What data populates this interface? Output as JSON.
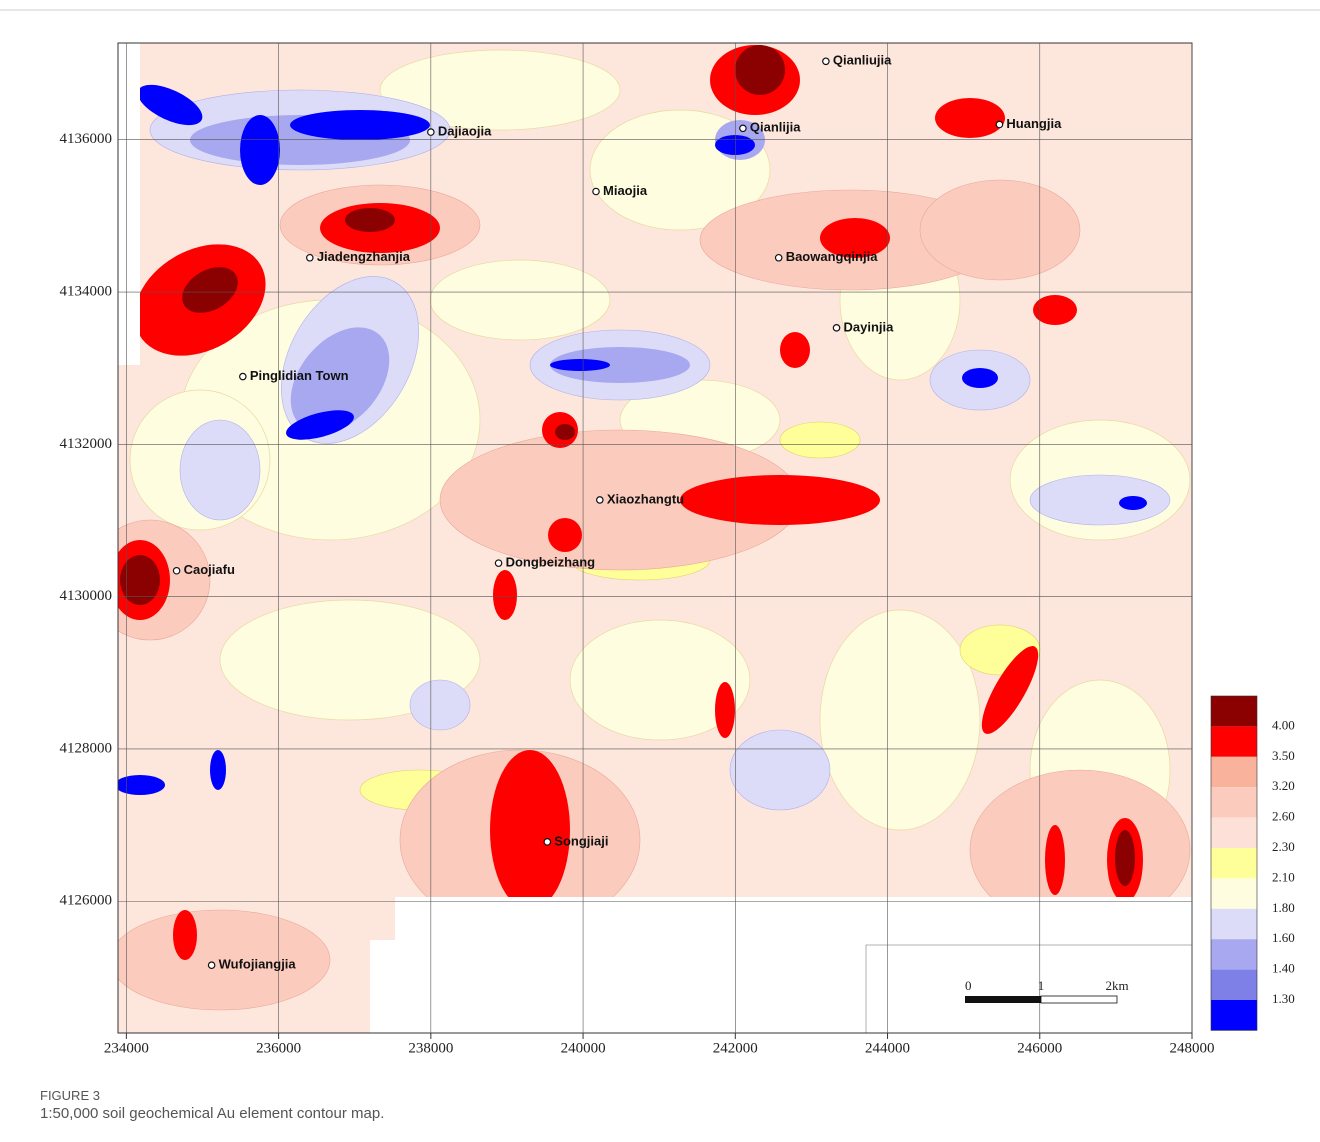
{
  "map": {
    "xlim": [
      233890,
      248000
    ],
    "ylim": [
      4124270,
      4137270
    ],
    "xticks": [
      234000,
      236000,
      238000,
      240000,
      242000,
      244000,
      246000,
      248000
    ],
    "yticks": [
      4126000,
      4128000,
      4130000,
      4132000,
      4134000,
      4136000
    ],
    "places": [
      {
        "name": "Qianliujia",
        "x": 243190,
        "y": 4137030
      },
      {
        "name": "Dajiaojia",
        "x": 238000,
        "y": 4136100
      },
      {
        "name": "Qianlijia",
        "x": 242100,
        "y": 4136150
      },
      {
        "name": "Huangjia",
        "x": 245470,
        "y": 4136200
      },
      {
        "name": "Miaojia",
        "x": 240170,
        "y": 4135320
      },
      {
        "name": "Jiadengzhanjia",
        "x": 236410,
        "y": 4134450
      },
      {
        "name": "Baowangqinjia",
        "x": 242570,
        "y": 4134450
      },
      {
        "name": "Dayinjia",
        "x": 243330,
        "y": 4133530
      },
      {
        "name": "Pinglidian Town",
        "x": 235530,
        "y": 4132890
      },
      {
        "name": "Xiaozhangtu",
        "x": 240220,
        "y": 4131270
      },
      {
        "name": "Caojiafu",
        "x": 234660,
        "y": 4130340
      },
      {
        "name": "Dongbeizhang",
        "x": 238890,
        "y": 4130440
      },
      {
        "name": "Songjiaji",
        "x": 239530,
        "y": 4126780
      },
      {
        "name": "Wufojiangjia",
        "x": 235120,
        "y": 4125160
      }
    ],
    "legend": {
      "colors": [
        "#8b0000",
        "#ff0000",
        "#f9b29c",
        "#fbcbbd",
        "#fde0d8",
        "#ffff99",
        "#fffde0",
        "#dcdcf8",
        "#a8a8f0",
        "#7f7fe8",
        "#0000ff"
      ],
      "levels": [
        {
          "value": 4,
          "label": "4.00"
        },
        {
          "value": 3.5,
          "label": "3.50"
        },
        {
          "value": 3.2,
          "label": "3.20"
        },
        {
          "value": 2.6,
          "label": "2.60"
        },
        {
          "value": 2.3,
          "label": "2.30"
        },
        {
          "value": 2.1,
          "label": "2.10"
        },
        {
          "value": 1.8,
          "label": "1.80"
        },
        {
          "value": 1.6,
          "label": "1.60"
        },
        {
          "value": 1.4,
          "label": "1.40"
        },
        {
          "value": 1.3,
          "label": "1.30"
        }
      ]
    },
    "scale_bar": {
      "labels": [
        "0",
        "1",
        "2km"
      ]
    }
  },
  "figure": {
    "label": "FIGURE 3",
    "caption": "1:50,000 soil geochemical Au element contour map."
  }
}
